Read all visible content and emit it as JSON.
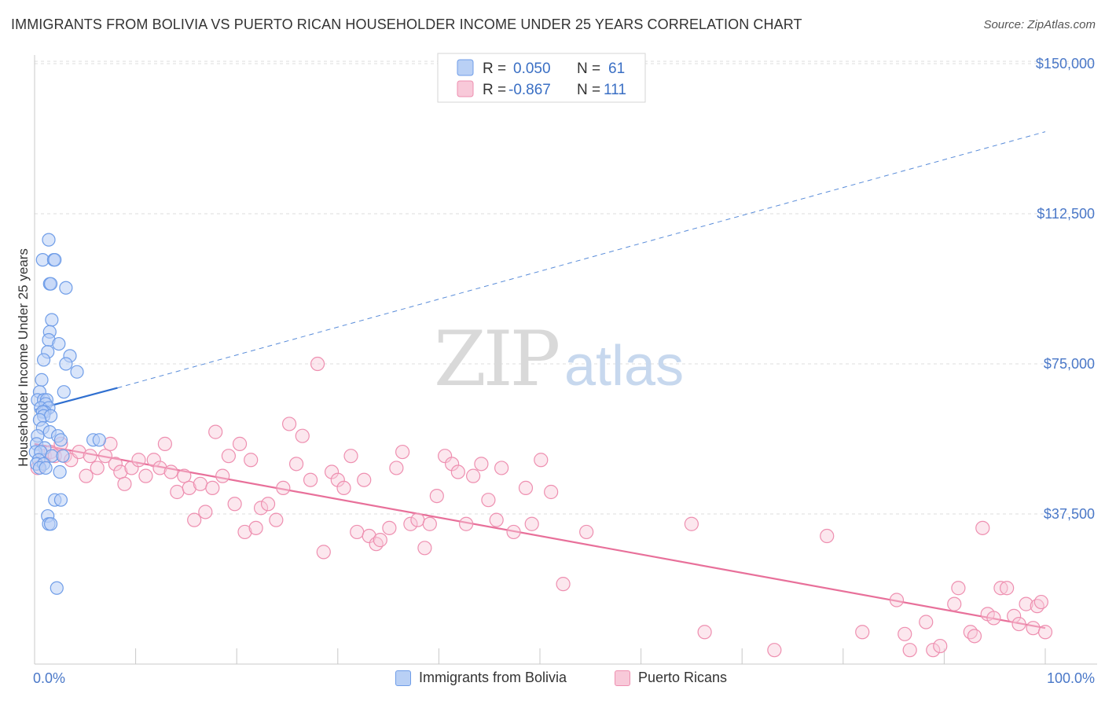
{
  "header": {
    "title": "IMMIGRANTS FROM BOLIVIA VS PUERTO RICAN HOUSEHOLDER INCOME UNDER 25 YEARS CORRELATION CHART",
    "source": "Source: ZipAtlas.com"
  },
  "watermark": {
    "zip": "ZIP",
    "atlas": "atlas"
  },
  "colors": {
    "bolivia": "#6f9de8",
    "bolivia_fill": "#b9d0f5",
    "puerto_rico": "#ee8fb0",
    "puerto_rico_fill": "#f8c9d9",
    "bolivia_line": "#2f6fd0",
    "puerto_rico_line": "#e8709a",
    "axis_text": "#4a78c8"
  },
  "legend_top": {
    "rows": [
      {
        "r_label": "R =",
        "r_value": "0.050",
        "n_label": "N =",
        "n_value": "61"
      },
      {
        "r_label": "R =",
        "r_value": "-0.867",
        "n_label": "N =",
        "n_value": "111"
      }
    ]
  },
  "legend_bottom": {
    "bolivia": "Immigrants from Bolivia",
    "puerto_rico": "Puerto Ricans"
  },
  "chart_data": {
    "type": "scatter",
    "title": "IMMIGRANTS FROM BOLIVIA VS PUERTO RICAN HOUSEHOLDER INCOME UNDER 25 YEARS CORRELATION CHART",
    "xlabel": "",
    "ylabel": "Householder Income Under 25 years",
    "xlim": [
      0,
      100
    ],
    "ylim": [
      0,
      157000
    ],
    "x_tick_labels": [
      "0.0%",
      "100.0%"
    ],
    "y_ticks": [
      37500,
      75000,
      112500,
      150000
    ],
    "y_tick_labels": [
      "$37,500",
      "$75,000",
      "$112,500",
      "$150,000"
    ],
    "grid": true,
    "series": [
      {
        "name": "Immigrants from Bolivia",
        "R": 0.05,
        "N": 61,
        "trend": {
          "x0": 0,
          "y0": 63500,
          "x1_solid": 8.2,
          "y1_solid": 69000,
          "x1": 100,
          "y1": 133000
        },
        "points": [
          [
            1.4,
            106000
          ],
          [
            0.8,
            101000
          ],
          [
            1.9,
            101000
          ],
          [
            2.0,
            101000
          ],
          [
            1.5,
            95000
          ],
          [
            1.6,
            95000
          ],
          [
            3.1,
            94000
          ],
          [
            1.7,
            86000
          ],
          [
            1.5,
            83000
          ],
          [
            1.4,
            81000
          ],
          [
            2.4,
            80000
          ],
          [
            1.3,
            78000
          ],
          [
            3.5,
            77000
          ],
          [
            0.9,
            76000
          ],
          [
            3.1,
            75000
          ],
          [
            4.2,
            73000
          ],
          [
            0.7,
            71000
          ],
          [
            2.9,
            68000
          ],
          [
            0.5,
            68000
          ],
          [
            0.3,
            66000
          ],
          [
            0.9,
            66000
          ],
          [
            1.2,
            66000
          ],
          [
            1.1,
            65000
          ],
          [
            0.6,
            64000
          ],
          [
            1.4,
            64000
          ],
          [
            1.0,
            63000
          ],
          [
            0.8,
            63000
          ],
          [
            0.9,
            62000
          ],
          [
            1.6,
            62000
          ],
          [
            0.5,
            61000
          ],
          [
            0.8,
            59000
          ],
          [
            1.5,
            58000
          ],
          [
            0.3,
            57000
          ],
          [
            2.3,
            57000
          ],
          [
            2.6,
            56000
          ],
          [
            5.8,
            56000
          ],
          [
            6.4,
            56000
          ],
          [
            0.2,
            55000
          ],
          [
            1.0,
            54000
          ],
          [
            0.1,
            53000
          ],
          [
            0.6,
            53000
          ],
          [
            1.7,
            52000
          ],
          [
            2.8,
            52000
          ],
          [
            0.4,
            51000
          ],
          [
            0.2,
            50000
          ],
          [
            0.9,
            50000
          ],
          [
            0.5,
            49000
          ],
          [
            1.1,
            49000
          ],
          [
            2.5,
            48000
          ],
          [
            2.0,
            41000
          ],
          [
            2.6,
            41000
          ],
          [
            1.3,
            37000
          ],
          [
            1.4,
            35000
          ],
          [
            1.6,
            35000
          ],
          [
            2.2,
            19000
          ]
        ]
      },
      {
        "name": "Puerto Ricans",
        "R": -0.867,
        "N": 111,
        "trend": {
          "x0": 0,
          "y0": 55000,
          "x1": 100,
          "y1": 9000
        },
        "points": [
          [
            0.3,
            49000
          ],
          [
            1.0,
            52000
          ],
          [
            1.6,
            53000
          ],
          [
            2.0,
            52000
          ],
          [
            2.6,
            55000
          ],
          [
            3.0,
            52000
          ],
          [
            3.6,
            51000
          ],
          [
            4.4,
            53000
          ],
          [
            5.1,
            47000
          ],
          [
            5.5,
            52000
          ],
          [
            6.2,
            49000
          ],
          [
            7.0,
            52000
          ],
          [
            7.5,
            55000
          ],
          [
            8.0,
            50000
          ],
          [
            8.5,
            48000
          ],
          [
            8.9,
            45000
          ],
          [
            9.6,
            49000
          ],
          [
            10.3,
            51000
          ],
          [
            11.0,
            47000
          ],
          [
            11.8,
            51000
          ],
          [
            12.4,
            49000
          ],
          [
            12.9,
            55000
          ],
          [
            13.5,
            48000
          ],
          [
            14.1,
            43000
          ],
          [
            14.8,
            47000
          ],
          [
            15.3,
            44000
          ],
          [
            15.8,
            36000
          ],
          [
            16.4,
            45000
          ],
          [
            16.9,
            38000
          ],
          [
            17.6,
            44000
          ],
          [
            17.9,
            58000
          ],
          [
            18.6,
            47000
          ],
          [
            19.2,
            52000
          ],
          [
            19.8,
            40000
          ],
          [
            20.3,
            55000
          ],
          [
            20.8,
            33000
          ],
          [
            21.4,
            51000
          ],
          [
            21.9,
            34000
          ],
          [
            22.4,
            39000
          ],
          [
            23.1,
            40000
          ],
          [
            23.9,
            36000
          ],
          [
            24.6,
            44000
          ],
          [
            25.2,
            60000
          ],
          [
            25.9,
            50000
          ],
          [
            26.5,
            57000
          ],
          [
            27.3,
            46000
          ],
          [
            28.0,
            75000
          ],
          [
            28.6,
            28000
          ],
          [
            29.4,
            48000
          ],
          [
            30.0,
            46000
          ],
          [
            30.6,
            44000
          ],
          [
            31.3,
            52000
          ],
          [
            31.9,
            33000
          ],
          [
            32.6,
            46000
          ],
          [
            33.1,
            32000
          ],
          [
            33.8,
            30000
          ],
          [
            34.2,
            31000
          ],
          [
            35.1,
            34000
          ],
          [
            35.8,
            49000
          ],
          [
            36.4,
            53000
          ],
          [
            37.2,
            35000
          ],
          [
            37.9,
            36000
          ],
          [
            38.6,
            29000
          ],
          [
            39.1,
            35000
          ],
          [
            39.8,
            42000
          ],
          [
            40.6,
            52000
          ],
          [
            41.3,
            50000
          ],
          [
            41.9,
            48000
          ],
          [
            42.7,
            35000
          ],
          [
            43.4,
            47000
          ],
          [
            44.2,
            50000
          ],
          [
            44.9,
            41000
          ],
          [
            45.7,
            36000
          ],
          [
            46.2,
            49000
          ],
          [
            47.4,
            33000
          ],
          [
            48.6,
            44000
          ],
          [
            49.2,
            35000
          ],
          [
            50.1,
            51000
          ],
          [
            51.1,
            43000
          ],
          [
            52.3,
            20000
          ],
          [
            54.6,
            33000
          ],
          [
            65.0,
            35000
          ],
          [
            66.3,
            8000
          ],
          [
            73.2,
            3500
          ],
          [
            78.4,
            32000
          ],
          [
            81.9,
            8000
          ],
          [
            85.3,
            16000
          ],
          [
            86.1,
            7500
          ],
          [
            86.6,
            3500
          ],
          [
            88.2,
            10500
          ],
          [
            88.9,
            3500
          ],
          [
            89.6,
            4500
          ],
          [
            91.0,
            15000
          ],
          [
            91.4,
            19000
          ],
          [
            92.6,
            8000
          ],
          [
            93.0,
            7000
          ],
          [
            93.8,
            34000
          ],
          [
            94.3,
            12500
          ],
          [
            94.9,
            11500
          ],
          [
            95.6,
            19000
          ],
          [
            96.2,
            19000
          ],
          [
            96.9,
            12000
          ],
          [
            97.4,
            10000
          ],
          [
            98.1,
            15000
          ],
          [
            98.8,
            9000
          ],
          [
            99.2,
            14500
          ],
          [
            99.6,
            15500
          ],
          [
            100.0,
            8000
          ]
        ]
      }
    ]
  }
}
